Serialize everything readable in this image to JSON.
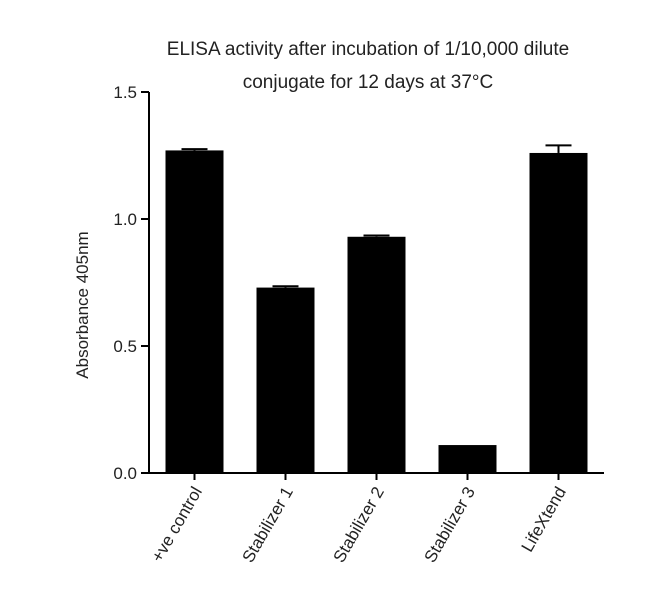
{
  "chart_data": {
    "type": "bar",
    "title": [
      "ELISA activity after incubation of 1/10,000 dilute",
      "conjugate for 12 days at 37°C"
    ],
    "xlabel": "",
    "ylabel": "Absorbance 405nm",
    "ylim": [
      0,
      1.5
    ],
    "yticks": [
      "0.0",
      "0.5",
      "1.0",
      "1.5"
    ],
    "grid": false,
    "categories": [
      "+ve control",
      "Stabilizer 1",
      "Stabilizer 2",
      "Stabilizer 3",
      "LifeXtend"
    ],
    "values": [
      1.27,
      0.73,
      0.93,
      0.11,
      1.26
    ],
    "errors": [
      0.005,
      0.005,
      0.005,
      0.0,
      0.03
    ],
    "colors": {
      "bar": "#000000",
      "axis": "#000000",
      "text": "#222222"
    }
  }
}
